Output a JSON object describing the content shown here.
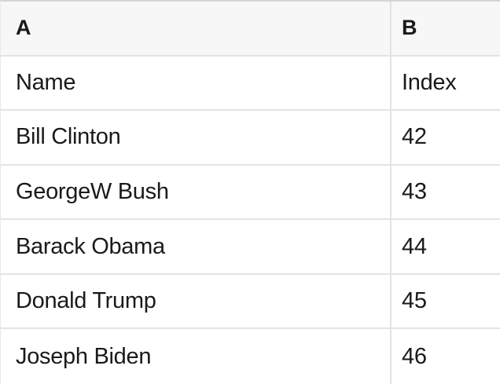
{
  "table": {
    "column_headers": {
      "a": "A",
      "b": "B"
    },
    "field_labels": {
      "name": "Name",
      "index": "Index"
    },
    "rows": [
      {
        "name": "Bill Clinton",
        "index": "42"
      },
      {
        "name": "GeorgeW Bush",
        "index": "43"
      },
      {
        "name": "Barack Obama",
        "index": "44"
      },
      {
        "name": "Donald Trump",
        "index": "45"
      },
      {
        "name": "Joseph Biden",
        "index": "46"
      }
    ]
  },
  "colors": {
    "header_bg": "#f7f7f7",
    "cell_bg": "#ffffff",
    "grid_line": "#e3e3e3",
    "top_border": "#d5d5d5",
    "left_border": "#e9e9e9",
    "text": "#1a1a1a"
  }
}
